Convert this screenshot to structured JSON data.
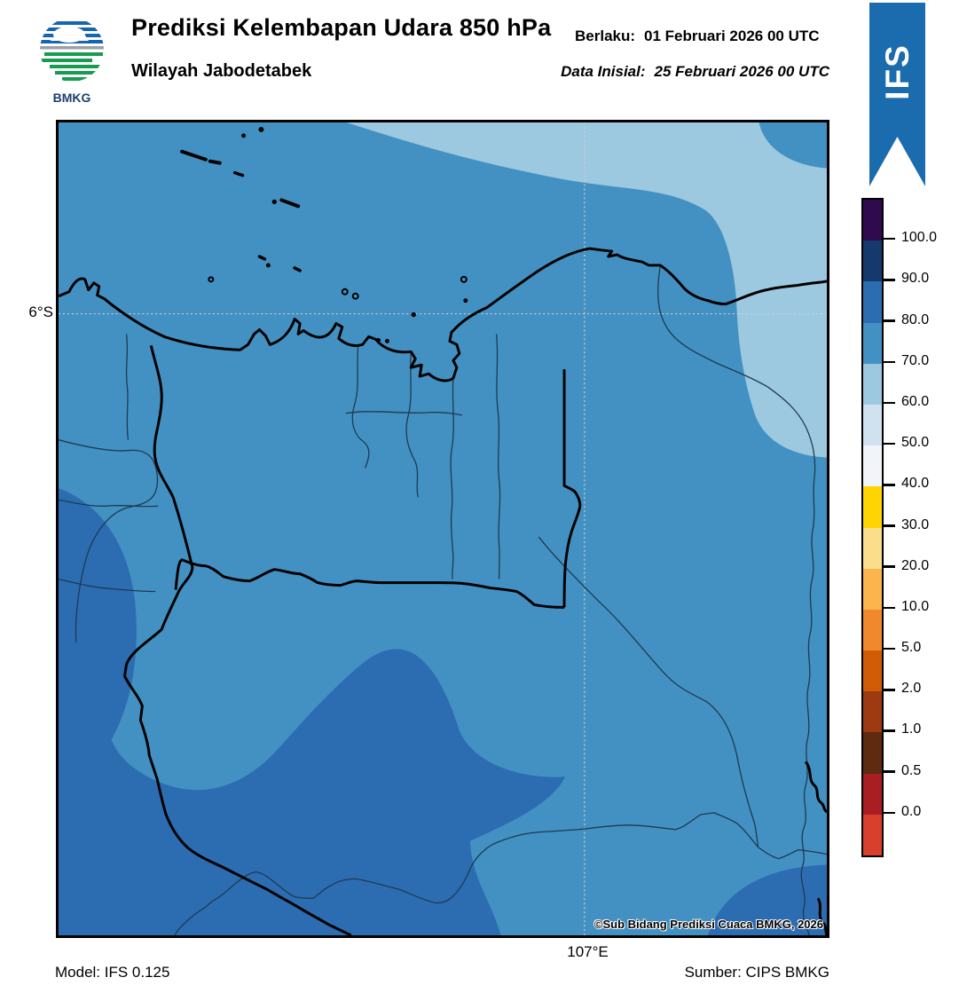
{
  "header": {
    "logo_text": "BMKG",
    "title": "Prediksi Kelembapan Udara 850 hPa",
    "subtitle": "Wilayah Jabodetabek",
    "berlaku_label": "Berlaku:",
    "berlaku_value": "01 Februari 2026 00 UTC",
    "inisial_label": "Data Inisial:",
    "inisial_value": "25 Februari 2026 00 UTC"
  },
  "ribbon": {
    "label": "IFS",
    "color": "#1a6cae"
  },
  "map": {
    "lat_label": "6°S",
    "lon_label": "107°E",
    "copyright": "©Sub Bidang Prediksi Cuaca BMKG, 2026",
    "fill_colors": {
      "base_70_80": "#4391c3",
      "light_60_70": "#9dc9e0",
      "dark_80_90": "#2c6db2",
      "gridline": "#c9cfcf",
      "thin_boundary": "#1e3a50",
      "thick_boundary": "#000000"
    }
  },
  "colorbar": {
    "segment_colors_top_to_bottom": [
      "#2f0a4d",
      "#15396d",
      "#2c6db2",
      "#4391c3",
      "#9dc9e0",
      "#d0e2f0",
      "#f1f4f8",
      "#fed402",
      "#fbde8c",
      "#fcb44d",
      "#f0892e",
      "#d15c07",
      "#9d3a11",
      "#5e2a10",
      "#a81e23",
      "#d8402d"
    ],
    "tick_labels": [
      "100.0",
      "90.0",
      "80.0",
      "70.0",
      "60.0",
      "50.0",
      "40.0",
      "30.0",
      "20.0",
      "10.0",
      "5.0",
      "2.0",
      "1.0",
      "0.5",
      "0.0"
    ],
    "unit": "%"
  },
  "footer": {
    "model": "Model: IFS 0.125",
    "source": "Sumber: CIPS BMKG"
  }
}
